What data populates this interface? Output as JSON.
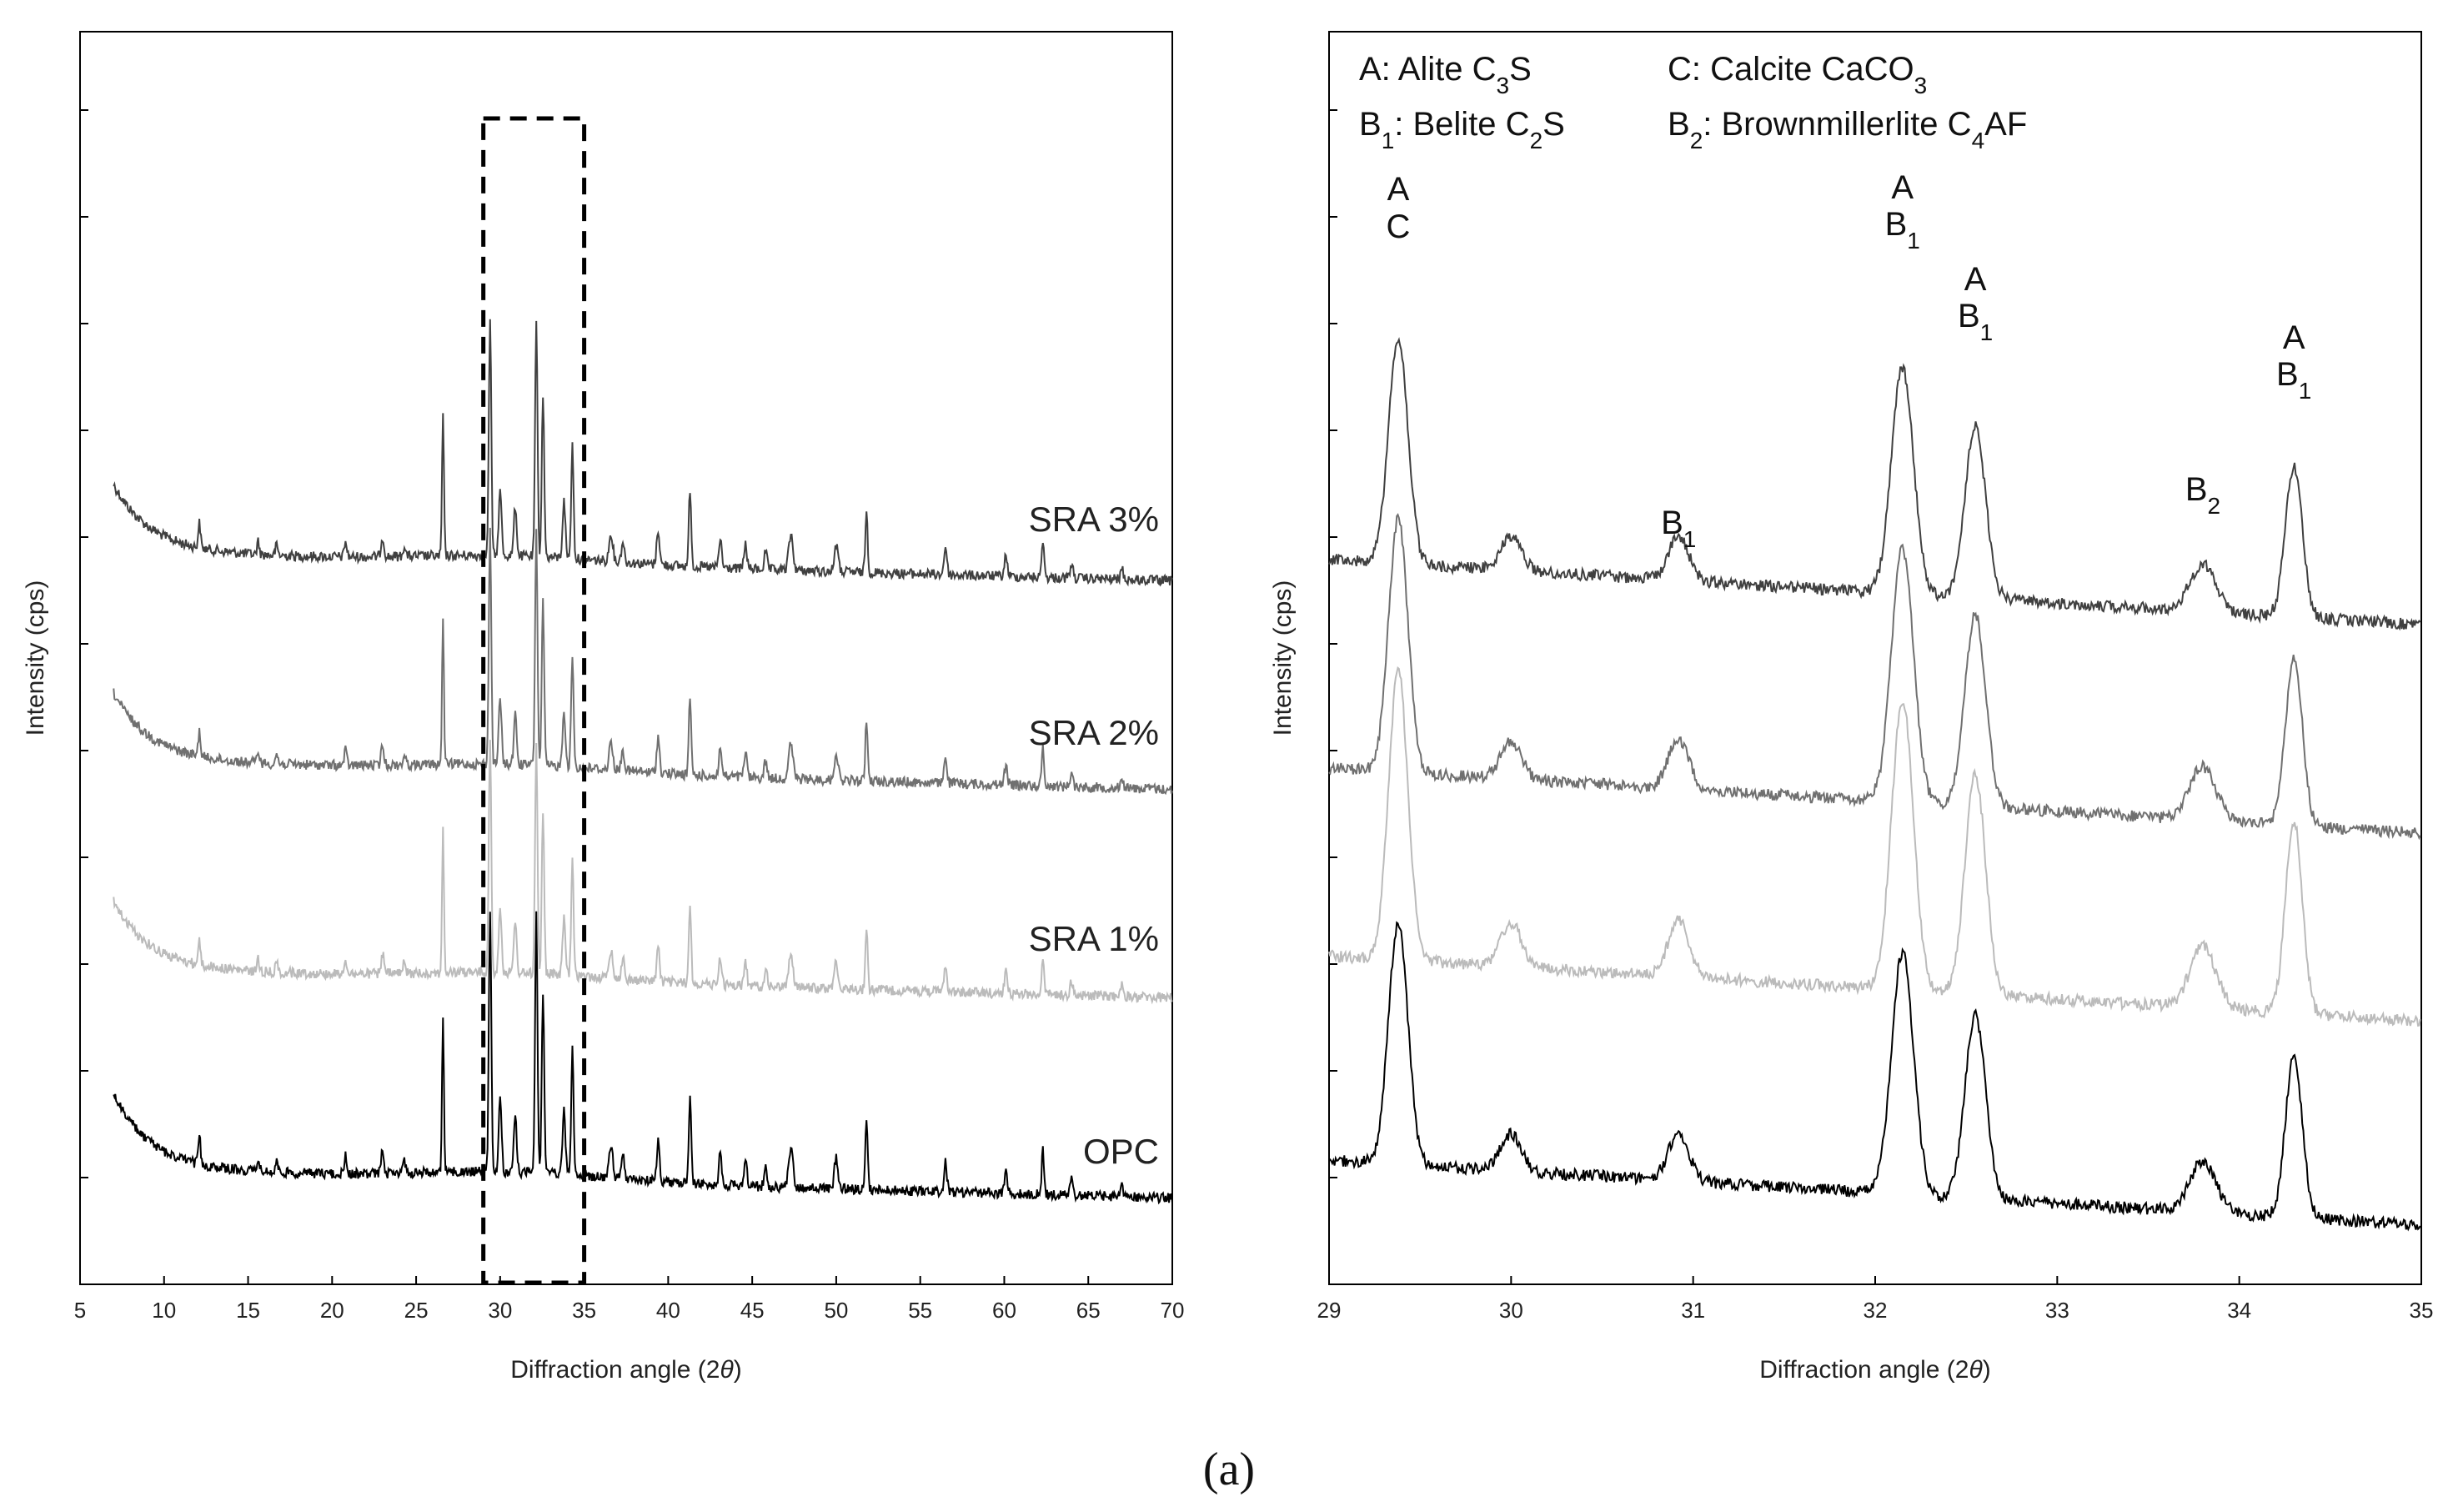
{
  "figure_label": "(a)",
  "chart_data": [
    {
      "type": "line",
      "panel": "left",
      "xlabel": "Diffraction angle (2θ)",
      "ylabel": "Intensity (cps)",
      "xlim": [
        5,
        70
      ],
      "xticks": [
        "5",
        "10",
        "15",
        "20",
        "25",
        "30",
        "35",
        "40",
        "45",
        "50",
        "55",
        "60",
        "65",
        "70"
      ],
      "y_tick_labels": false,
      "highlight_box_x": [
        29,
        35
      ],
      "series": [
        {
          "name": "SRA 3%",
          "color": "#404040",
          "offset_index": 3
        },
        {
          "name": "SRA 2%",
          "color": "#707070",
          "offset_index": 2
        },
        {
          "name": "SRA 1%",
          "color": "#bbbbbb",
          "offset_index": 1
        },
        {
          "name": "OPC",
          "color": "#000000",
          "offset_index": 0
        }
      ],
      "peaks_2theta": [
        12.1,
        15.6,
        20.8,
        23.0,
        26.6,
        29.4,
        30.0,
        30.9,
        32.15,
        32.55,
        33.8,
        34.3,
        36.6,
        39.4,
        41.3,
        43.1,
        44.6,
        47.3,
        50.0,
        51.8,
        56.5,
        60.1,
        62.3
      ]
    },
    {
      "type": "line",
      "panel": "right",
      "xlabel": "Diffraction angle (2θ)",
      "ylabel": "Intensity (cps)",
      "xlim": [
        29,
        35
      ],
      "xticks": [
        "29",
        "30",
        "31",
        "32",
        "33",
        "34",
        "35"
      ],
      "y_tick_labels": false,
      "series": [
        {
          "name": "SRA 3%",
          "color": "#404040",
          "offset_index": 3
        },
        {
          "name": "SRA 2%",
          "color": "#707070",
          "offset_index": 2
        },
        {
          "name": "SRA 1%",
          "color": "#bbbbbb",
          "offset_index": 1
        },
        {
          "name": "OPC",
          "color": "#000000",
          "offset_index": 0
        }
      ],
      "peaks": [
        {
          "x": 29.38,
          "labels": [
            "A",
            "C"
          ]
        },
        {
          "x": 30.0,
          "labels": []
        },
        {
          "x": 30.92,
          "labels": [
            "B|1"
          ]
        },
        {
          "x": 32.15,
          "labels": [
            "A",
            "B|1"
          ]
        },
        {
          "x": 32.55,
          "labels": [
            "A",
            "B|1"
          ]
        },
        {
          "x": 33.8,
          "labels": [
            "B|2"
          ]
        },
        {
          "x": 34.3,
          "labels": [
            "A",
            "B|1"
          ]
        }
      ],
      "legend": [
        "A: Alite C|3|S",
        "C: Calcite CaCO|3",
        "B|1|: Belite C|2|S",
        "B|2|: Brownmillerlite C|4|AF"
      ]
    }
  ]
}
